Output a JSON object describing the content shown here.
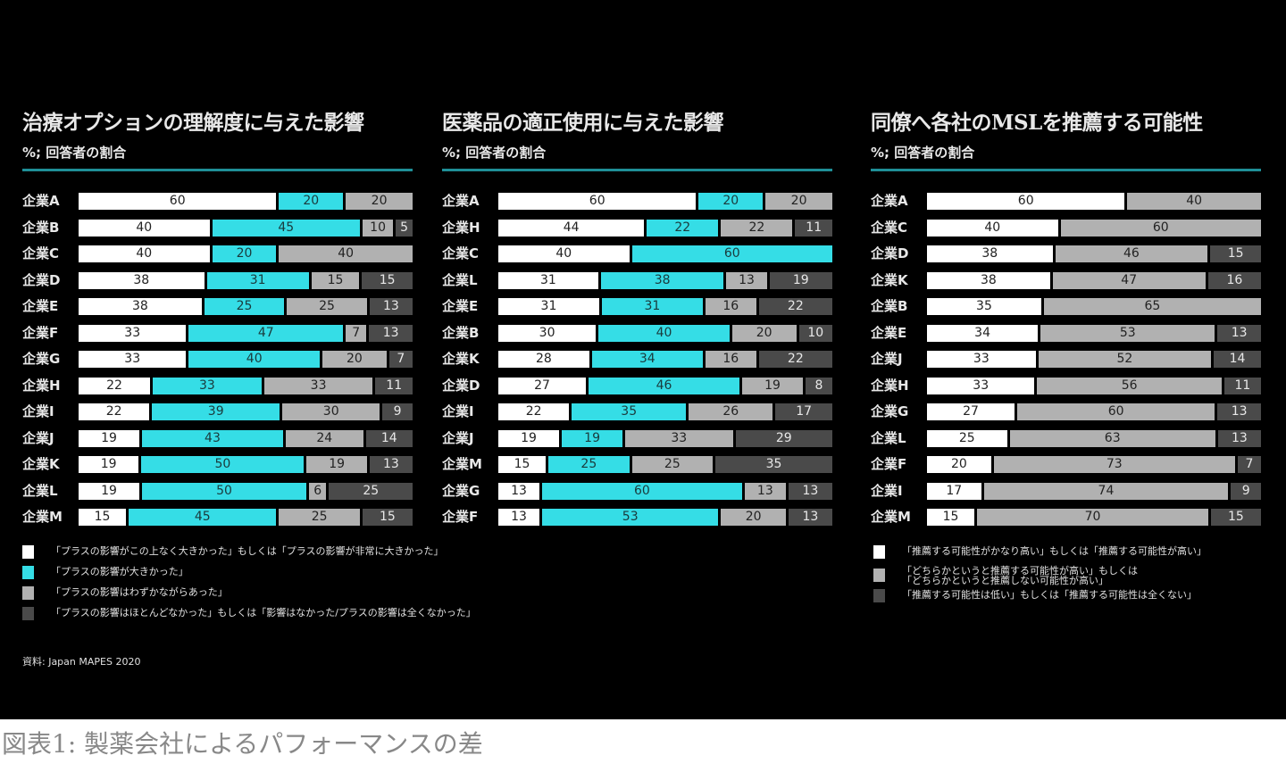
{
  "chart_data": [
    {
      "type": "bar",
      "orientation": "horizontal-stacked-100",
      "title": "治療オプションの理解度に与えた影響",
      "subtitle": "%; 回答者の割合",
      "categories": [
        "企業A",
        "企業B",
        "企業C",
        "企業D",
        "企業E",
        "企業F",
        "企業G",
        "企業H",
        "企業I",
        "企業J",
        "企業K",
        "企業L",
        "企業M"
      ],
      "series": [
        {
          "name": "「プラスの影響がこの上なく大きかった」もしくは「プラスの影響が非常に大きかった」",
          "color": "#ffffff",
          "values": [
            60,
            40,
            40,
            38,
            38,
            33,
            33,
            22,
            22,
            19,
            19,
            19,
            15
          ]
        },
        {
          "name": "「プラスの影響が大きかった」",
          "color": "#35dde6",
          "values": [
            20,
            45,
            20,
            31,
            25,
            47,
            40,
            33,
            39,
            43,
            50,
            50,
            45
          ]
        },
        {
          "name": "「プラスの影響はわずかながらあった」",
          "color": "#b1b1b1",
          "values": [
            20,
            10,
            40,
            15,
            25,
            7,
            20,
            33,
            30,
            24,
            19,
            6,
            25
          ]
        },
        {
          "name": "「プラスの影響はほとんどなかった」もしくは「影響はなかった/プラスの影響は全くなかった」",
          "color": "#4a4a4a",
          "values": [
            0,
            5,
            0,
            15,
            13,
            13,
            7,
            11,
            9,
            14,
            13,
            25,
            15
          ]
        }
      ]
    },
    {
      "type": "bar",
      "orientation": "horizontal-stacked-100",
      "title": "医薬品の適正使用に与えた影響",
      "subtitle": "%; 回答者の割合",
      "categories": [
        "企業A",
        "企業H",
        "企業C",
        "企業L",
        "企業E",
        "企業B",
        "企業K",
        "企業D",
        "企業I",
        "企業J",
        "企業M",
        "企業G",
        "企業F"
      ],
      "series": [
        {
          "name": "s1",
          "color": "#ffffff",
          "values": [
            60,
            44,
            40,
            31,
            31,
            30,
            28,
            27,
            22,
            19,
            15,
            13,
            13
          ]
        },
        {
          "name": "s2",
          "color": "#35dde6",
          "values": [
            20,
            22,
            60,
            38,
            31,
            40,
            34,
            46,
            35,
            19,
            25,
            60,
            53
          ]
        },
        {
          "name": "s3",
          "color": "#b1b1b1",
          "values": [
            20,
            22,
            0,
            13,
            16,
            20,
            16,
            19,
            26,
            33,
            25,
            13,
            20
          ]
        },
        {
          "name": "s4",
          "color": "#4a4a4a",
          "values": [
            0,
            11,
            0,
            19,
            22,
            10,
            22,
            8,
            17,
            29,
            35,
            13,
            13
          ]
        }
      ]
    },
    {
      "type": "bar",
      "orientation": "horizontal-stacked-100",
      "title": "同僚へ各社のMSLを推薦する可能性",
      "subtitle": "%; 回答者の割合",
      "categories": [
        "企業A",
        "企業C",
        "企業D",
        "企業K",
        "企業B",
        "企業E",
        "企業J",
        "企業H",
        "企業G",
        "企業L",
        "企業F",
        "企業I",
        "企業M"
      ],
      "series": [
        {
          "name": "「推薦する可能性がかなり高い」もしくは「推薦する可能性が高い」",
          "color": "#ffffff",
          "values": [
            60,
            40,
            38,
            38,
            35,
            34,
            33,
            33,
            27,
            25,
            20,
            17,
            15
          ]
        },
        {
          "name": "「どちらかというと推薦する可能性が高い」もしくは「どちらかというと推薦しない可能性が高い」",
          "color": "#b1b1b1",
          "values": [
            40,
            60,
            46,
            47,
            65,
            53,
            52,
            56,
            60,
            63,
            73,
            74,
            70
          ]
        },
        {
          "name": "「推薦する可能性は低い」もしくは「推薦する可能性は全くない」",
          "color": "#4a4a4a",
          "values": [
            0,
            0,
            15,
            16,
            0,
            13,
            14,
            11,
            13,
            13,
            7,
            9,
            15
          ]
        }
      ]
    }
  ],
  "legend_left": [
    "「プラスの影響がこの上なく大きかった」もしくは「プラスの影響が非常に大きかった」",
    "「プラスの影響が大きかった」",
    "「プラスの影響はわずかながらあった」",
    "「プラスの影響はほとんどなかった」もしくは「影響はなかった/プラスの影響は全くなかった」"
  ],
  "legend_right": [
    "「推薦する可能性がかなり高い」もしくは「推薦する可能性が高い」",
    "「どちらかというと推薦する可能性が高い」もしくは\n「どちらかというと推薦しない可能性が高い」",
    "「推薦する可能性は低い」もしくは「推薦する可能性は全くない」"
  ],
  "source": "資料: Japan MAPES 2020",
  "caption": "図表1: 製薬会社によるパフォーマンスの差"
}
